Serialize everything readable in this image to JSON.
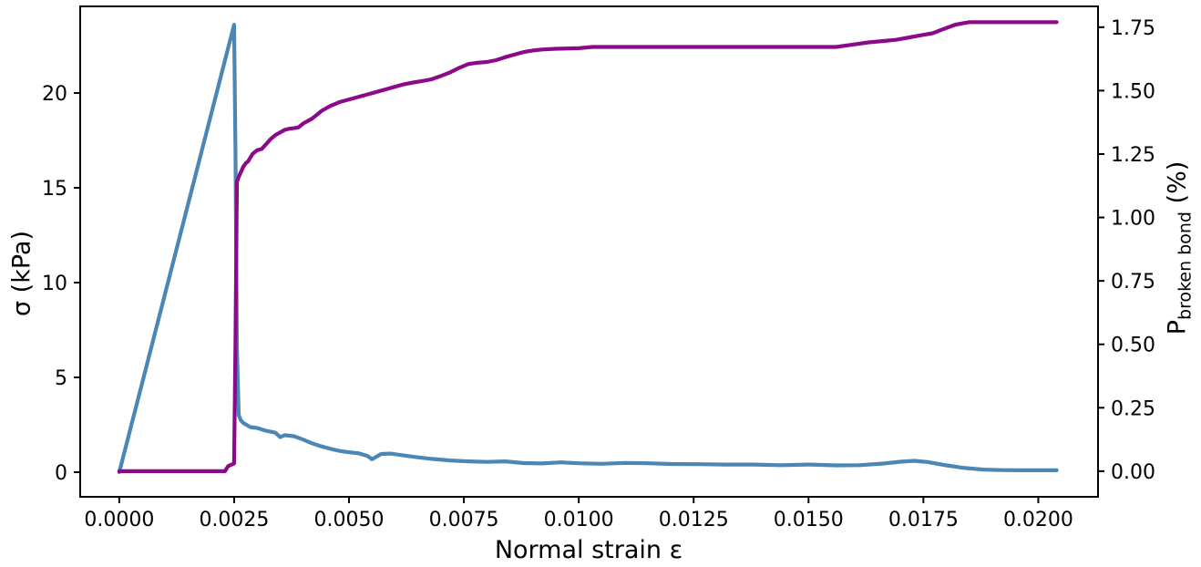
{
  "figure": {
    "background": "#ffffff",
    "xlabel": "Normal strain ε",
    "ylabel_left": "σ (kPa)",
    "ylabel_right_prefix": "P",
    "ylabel_right_sub": "broken bond",
    "ylabel_right_suffix": " (%)"
  },
  "chart_data": {
    "type": "line",
    "title": "",
    "xlabel": "Normal strain ε",
    "ylabel_left": "σ (kPa)",
    "ylabel_right": "P_broken bond (%)",
    "grid": false,
    "legend": "none",
    "axis_color": "#000000",
    "xlim": [
      -0.00085,
      0.0213
    ],
    "ylim_left": [
      -1.3,
      24.57
    ],
    "ylim_right": [
      -0.101,
      1.832
    ],
    "x_ticks": [
      0.0,
      0.0025,
      0.005,
      0.0075,
      0.01,
      0.0125,
      0.015,
      0.0175,
      0.02
    ],
    "x_tick_labels": [
      "0.0000",
      "0.0025",
      "0.0050",
      "0.0075",
      "0.0100",
      "0.0125",
      "0.0150",
      "0.0175",
      "0.0200"
    ],
    "y_ticks_left": [
      0,
      5,
      10,
      15,
      20
    ],
    "y_tick_labels_left": [
      "0",
      "5",
      "10",
      "15",
      "20"
    ],
    "y_ticks_right": [
      0.0,
      0.25,
      0.5,
      0.75,
      1.0,
      1.25,
      1.5,
      1.75
    ],
    "y_tick_labels_right": [
      "0.00",
      "0.25",
      "0.50",
      "0.75",
      "1.00",
      "1.25",
      "1.50",
      "1.75"
    ],
    "series": [
      {
        "name": "sigma",
        "axis": "left",
        "color": "#4b86b5",
        "width": 4.2,
        "points": [
          [
            0.0,
            0.0
          ],
          [
            0.0025,
            23.6
          ],
          [
            0.00253,
            17.0
          ],
          [
            0.00256,
            6.5
          ],
          [
            0.0026,
            3.0
          ],
          [
            0.00265,
            2.72
          ],
          [
            0.0027,
            2.6
          ],
          [
            0.00285,
            2.38
          ],
          [
            0.003,
            2.33
          ],
          [
            0.0032,
            2.18
          ],
          [
            0.0034,
            2.08
          ],
          [
            0.0035,
            1.85
          ],
          [
            0.0036,
            1.95
          ],
          [
            0.0038,
            1.9
          ],
          [
            0.004,
            1.72
          ],
          [
            0.0042,
            1.52
          ],
          [
            0.0044,
            1.36
          ],
          [
            0.0046,
            1.23
          ],
          [
            0.0048,
            1.12
          ],
          [
            0.005,
            1.05
          ],
          [
            0.0052,
            1.0
          ],
          [
            0.0054,
            0.86
          ],
          [
            0.0055,
            0.68
          ],
          [
            0.0057,
            0.96
          ],
          [
            0.0059,
            0.98
          ],
          [
            0.0062,
            0.88
          ],
          [
            0.0065,
            0.78
          ],
          [
            0.0068,
            0.7
          ],
          [
            0.0072,
            0.62
          ],
          [
            0.0076,
            0.57
          ],
          [
            0.008,
            0.54
          ],
          [
            0.0084,
            0.57
          ],
          [
            0.0088,
            0.48
          ],
          [
            0.0092,
            0.46
          ],
          [
            0.0096,
            0.52
          ],
          [
            0.01,
            0.47
          ],
          [
            0.0105,
            0.44
          ],
          [
            0.011,
            0.49
          ],
          [
            0.0115,
            0.47
          ],
          [
            0.012,
            0.43
          ],
          [
            0.0126,
            0.42
          ],
          [
            0.0132,
            0.4
          ],
          [
            0.0138,
            0.4
          ],
          [
            0.0144,
            0.37
          ],
          [
            0.015,
            0.4
          ],
          [
            0.0156,
            0.36
          ],
          [
            0.0161,
            0.37
          ],
          [
            0.0166,
            0.45
          ],
          [
            0.017,
            0.55
          ],
          [
            0.0173,
            0.6
          ],
          [
            0.0176,
            0.53
          ],
          [
            0.018,
            0.36
          ],
          [
            0.0184,
            0.22
          ],
          [
            0.0188,
            0.14
          ],
          [
            0.0192,
            0.11
          ],
          [
            0.0196,
            0.1
          ],
          [
            0.02,
            0.1
          ],
          [
            0.0204,
            0.1
          ]
        ]
      },
      {
        "name": "p-broken-bond",
        "axis": "right",
        "color": "#8b0a8b",
        "width": 4.2,
        "points": [
          [
            0.0,
            0.0
          ],
          [
            0.0015,
            0.0
          ],
          [
            0.0023,
            0.0
          ],
          [
            0.00237,
            0.02
          ],
          [
            0.0025,
            0.03
          ],
          [
            0.00253,
            0.5
          ],
          [
            0.00256,
            1.14
          ],
          [
            0.0026,
            1.16
          ],
          [
            0.00265,
            1.18
          ],
          [
            0.0027,
            1.2
          ],
          [
            0.00276,
            1.215
          ],
          [
            0.0028,
            1.22
          ],
          [
            0.0029,
            1.25
          ],
          [
            0.003,
            1.265
          ],
          [
            0.0031,
            1.27
          ],
          [
            0.0032,
            1.29
          ],
          [
            0.0033,
            1.31
          ],
          [
            0.0034,
            1.325
          ],
          [
            0.0035,
            1.335
          ],
          [
            0.0036,
            1.345
          ],
          [
            0.0037,
            1.35
          ],
          [
            0.0038,
            1.352
          ],
          [
            0.0039,
            1.355
          ],
          [
            0.004,
            1.37
          ],
          [
            0.0042,
            1.39
          ],
          [
            0.0044,
            1.42
          ],
          [
            0.0046,
            1.44
          ],
          [
            0.0048,
            1.455
          ],
          [
            0.005,
            1.465
          ],
          [
            0.0052,
            1.475
          ],
          [
            0.0054,
            1.485
          ],
          [
            0.0056,
            1.495
          ],
          [
            0.0058,
            1.505
          ],
          [
            0.006,
            1.515
          ],
          [
            0.0062,
            1.525
          ],
          [
            0.0064,
            1.532
          ],
          [
            0.0066,
            1.538
          ],
          [
            0.0068,
            1.545
          ],
          [
            0.007,
            1.558
          ],
          [
            0.0072,
            1.572
          ],
          [
            0.0074,
            1.59
          ],
          [
            0.0076,
            1.605
          ],
          [
            0.0078,
            1.61
          ],
          [
            0.008,
            1.613
          ],
          [
            0.0082,
            1.62
          ],
          [
            0.0084,
            1.632
          ],
          [
            0.0086,
            1.642
          ],
          [
            0.0088,
            1.652
          ],
          [
            0.009,
            1.658
          ],
          [
            0.0092,
            1.662
          ],
          [
            0.0095,
            1.665
          ],
          [
            0.01,
            1.667
          ],
          [
            0.0103,
            1.672
          ],
          [
            0.011,
            1.672
          ],
          [
            0.012,
            1.672
          ],
          [
            0.013,
            1.672
          ],
          [
            0.014,
            1.672
          ],
          [
            0.015,
            1.672
          ],
          [
            0.0156,
            1.672
          ],
          [
            0.016,
            1.682
          ],
          [
            0.0163,
            1.69
          ],
          [
            0.0166,
            1.695
          ],
          [
            0.0169,
            1.7
          ],
          [
            0.0172,
            1.71
          ],
          [
            0.0175,
            1.72
          ],
          [
            0.0177,
            1.726
          ],
          [
            0.0179,
            1.74
          ],
          [
            0.0182,
            1.76
          ],
          [
            0.0185,
            1.77
          ],
          [
            0.019,
            1.77
          ],
          [
            0.0195,
            1.77
          ],
          [
            0.02,
            1.77
          ],
          [
            0.0204,
            1.77
          ]
        ]
      }
    ]
  }
}
